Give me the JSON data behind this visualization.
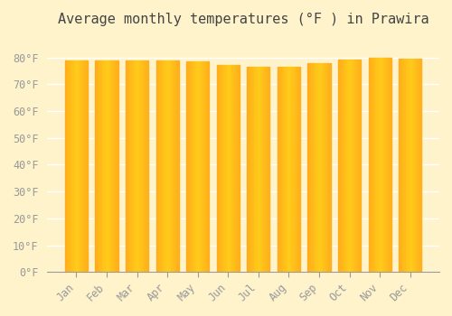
{
  "title": "Average monthly temperatures (°F ) in Prawira",
  "months": [
    "Jan",
    "Feb",
    "Mar",
    "Apr",
    "May",
    "Jun",
    "Jul",
    "Aug",
    "Sep",
    "Oct",
    "Nov",
    "Dec"
  ],
  "values": [
    78.8,
    78.8,
    78.8,
    78.8,
    78.4,
    77.0,
    76.5,
    76.5,
    77.9,
    79.3,
    79.9,
    79.5
  ],
  "bar_color": "#FFA500",
  "bar_edge_color": "#CC8800",
  "background_color": "#FFF3CC",
  "plot_background": "#FFF3CC",
  "ylim": [
    0,
    88
  ],
  "yticks": [
    0,
    10,
    20,
    30,
    40,
    50,
    60,
    70,
    80
  ],
  "ytick_labels": [
    "0°F",
    "10°F",
    "20°F",
    "30°F",
    "40°F",
    "50°F",
    "60°F",
    "70°F",
    "80°F"
  ],
  "grid_color": "#FFFFFF",
  "title_fontsize": 11,
  "tick_fontsize": 8.5,
  "tick_color": "#999999",
  "bar_width": 0.75
}
